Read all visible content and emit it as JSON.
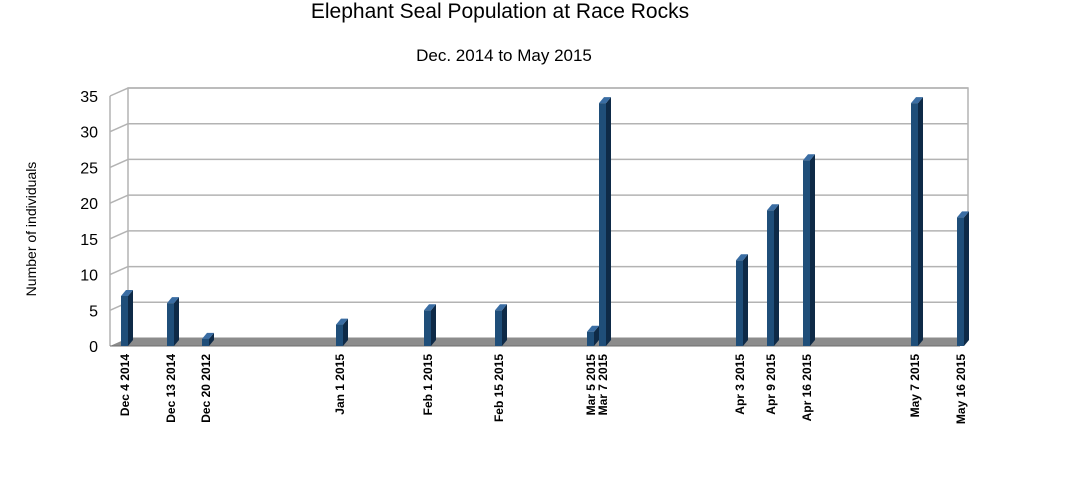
{
  "chart_data": {
    "type": "bar",
    "title": "Elephant Seal Population at Race Rocks",
    "subtitle": "Dec. 2014 to May 2015",
    "ylabel": "Number of individuals",
    "xlabel": "",
    "ylim": [
      0,
      35
    ],
    "yticks": [
      0,
      5,
      10,
      15,
      20,
      25,
      30,
      35
    ],
    "grid": true,
    "legend": "none",
    "bar_color": "#1f4e79",
    "points": [
      {
        "label": "Dec 4 2014",
        "value": 7
      },
      {
        "label": "Dec 13 2014",
        "value": 6
      },
      {
        "label": "Dec 20 2012",
        "value": 1
      },
      {
        "label": "Jan 1 2015",
        "value": 3
      },
      {
        "label": "Feb 1 2015",
        "value": 5
      },
      {
        "label": "Feb  15 2015",
        "value": 5
      },
      {
        "label": "Mar 5 2015",
        "value": 2
      },
      {
        "label": "Mar 7 2015",
        "value": 34
      },
      {
        "label": "Apr 3 2015",
        "value": 12
      },
      {
        "label": "Apr 9 2015",
        "value": 19
      },
      {
        "label": "Apr 16 2015",
        "value": 26
      },
      {
        "label": "May 7 2015",
        "value": 34
      },
      {
        "label": "May 16 2015",
        "value": 18
      }
    ]
  }
}
